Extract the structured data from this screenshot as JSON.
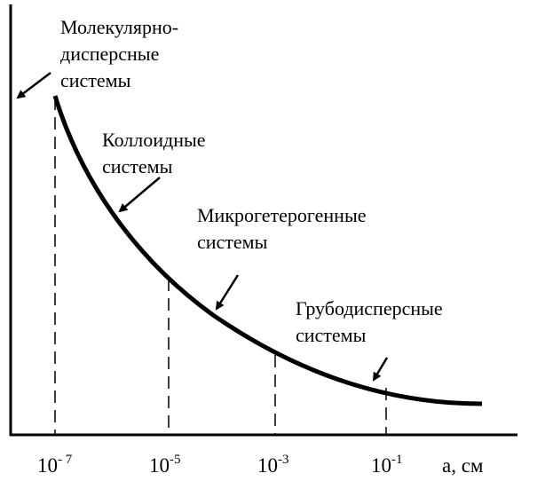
{
  "labels": {
    "molecular": [
      "Молекулярно-",
      "дисперсные",
      "системы"
    ],
    "colloid": [
      "Коллоидные",
      "системы"
    ],
    "micro": [
      "Микрогетерогенные",
      "системы"
    ],
    "coarse": [
      "Грубодисперсные",
      "системы"
    ]
  },
  "x_axis": {
    "ticks": [
      {
        "base": "10",
        "exp": "- 7"
      },
      {
        "base": "10",
        "exp": "-5"
      },
      {
        "base": "10",
        "exp": "-3"
      },
      {
        "base": "10",
        "exp": "-1"
      }
    ],
    "label": "а, см"
  }
}
